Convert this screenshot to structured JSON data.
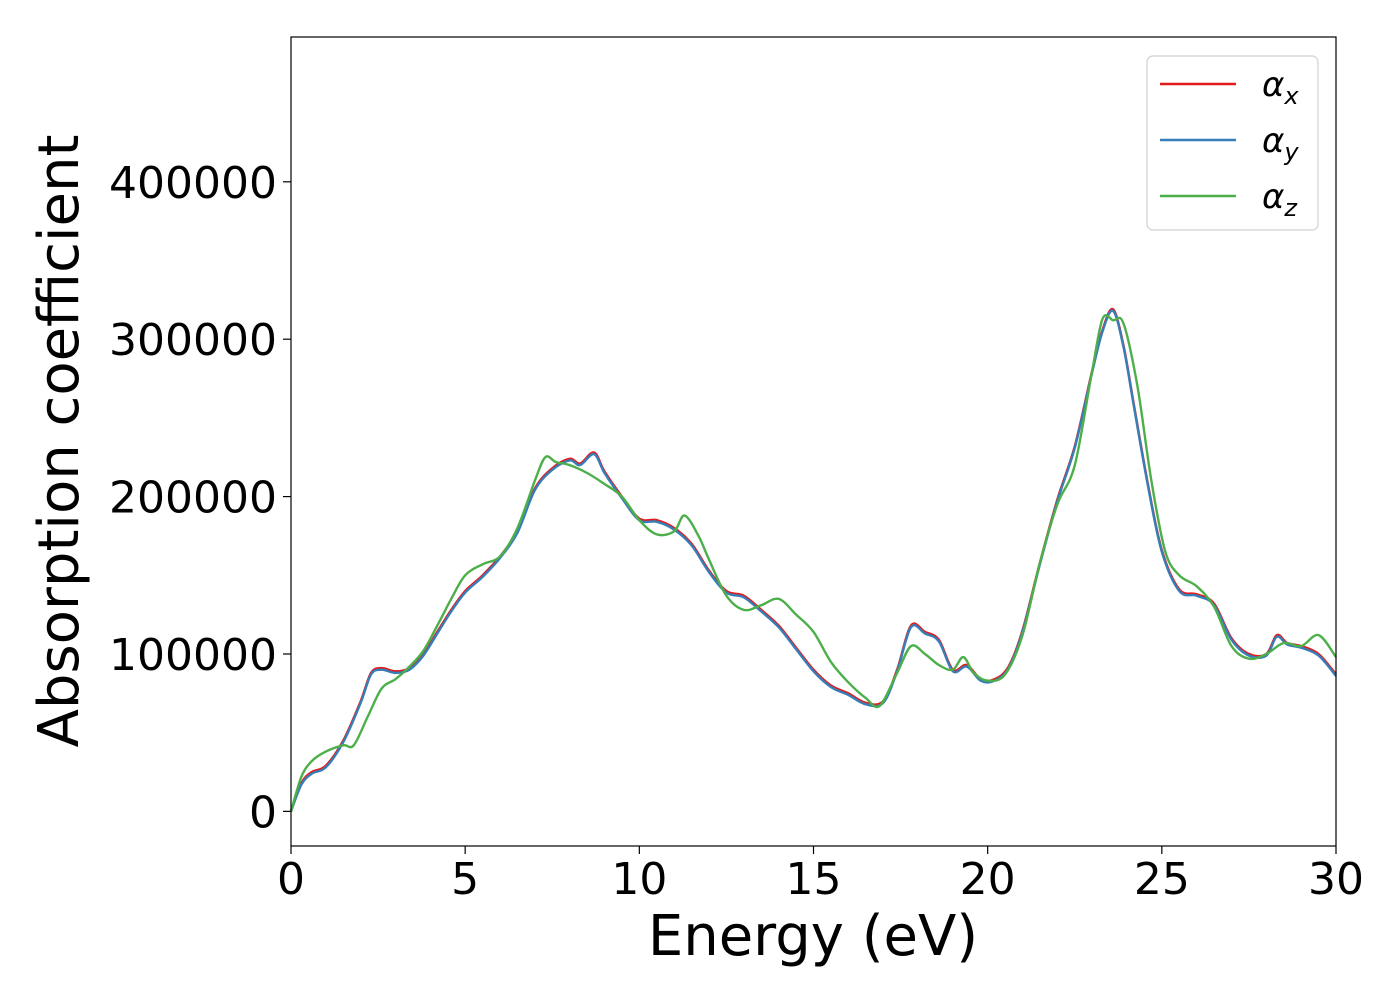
{
  "chart_data": {
    "type": "line",
    "xlabel": "Energy (eV)",
    "ylabel": "Absorption coefficient",
    "xlim": [
      0,
      30
    ],
    "ylim": [
      -22000,
      492000
    ],
    "xticks": [
      0,
      5,
      10,
      15,
      20,
      25,
      30
    ],
    "yticks": [
      0,
      100000,
      200000,
      300000,
      400000
    ],
    "grid": false,
    "legend_position": "top-right",
    "series": [
      {
        "name": "α_x",
        "base": "α",
        "sub": "x",
        "color": "#e41a1c",
        "x": [
          0,
          0.3,
          0.6,
          1.0,
          1.5,
          2.0,
          2.3,
          2.6,
          3.0,
          3.4,
          3.8,
          4.2,
          4.6,
          5.0,
          5.5,
          6.0,
          6.5,
          7.0,
          7.5,
          8.0,
          8.3,
          8.7,
          9.0,
          9.5,
          10.0,
          10.5,
          11.0,
          11.5,
          12.0,
          12.5,
          13.0,
          13.5,
          14.0,
          14.5,
          15.0,
          15.5,
          16.0,
          16.5,
          17.0,
          17.4,
          17.8,
          18.2,
          18.6,
          19.0,
          19.4,
          19.8,
          20.2,
          20.6,
          21.0,
          21.5,
          22.0,
          22.5,
          23.0,
          23.3,
          23.6,
          23.9,
          24.2,
          24.6,
          25.0,
          25.5,
          26.0,
          26.5,
          27.0,
          27.5,
          28.0,
          28.3,
          28.6,
          29.0,
          29.5,
          30.0
        ],
        "y": [
          0,
          18000,
          25000,
          29000,
          45000,
          70000,
          88000,
          91000,
          89000,
          91000,
          100000,
          114000,
          128000,
          140000,
          150000,
          162000,
          178000,
          205000,
          218000,
          224000,
          221000,
          228000,
          216000,
          200000,
          186000,
          185000,
          180000,
          170000,
          153000,
          140000,
          137000,
          128000,
          118000,
          104000,
          90000,
          80000,
          75000,
          69000,
          70000,
          90000,
          118000,
          114000,
          109000,
          90000,
          93000,
          84000,
          84000,
          92000,
          115000,
          158000,
          198000,
          232000,
          280000,
          306000,
          319000,
          296000,
          258000,
          208000,
          166000,
          141000,
          138000,
          132000,
          110000,
          100000,
          100000,
          112000,
          107000,
          105000,
          100000,
          87000
        ]
      },
      {
        "name": "α_y",
        "base": "α",
        "sub": "y",
        "color": "#377eb8",
        "x": [
          0,
          0.3,
          0.6,
          1.0,
          1.5,
          2.0,
          2.3,
          2.6,
          3.0,
          3.4,
          3.8,
          4.2,
          4.6,
          5.0,
          5.5,
          6.0,
          6.5,
          7.0,
          7.5,
          8.0,
          8.3,
          8.7,
          9.0,
          9.5,
          10.0,
          10.5,
          11.0,
          11.5,
          12.0,
          12.5,
          13.0,
          13.5,
          14.0,
          14.5,
          15.0,
          15.5,
          16.0,
          16.5,
          17.0,
          17.4,
          17.8,
          18.2,
          18.6,
          19.0,
          19.4,
          19.8,
          20.2,
          20.6,
          21.0,
          21.5,
          22.0,
          22.5,
          23.0,
          23.3,
          23.6,
          23.9,
          24.2,
          24.6,
          25.0,
          25.5,
          26.0,
          26.5,
          27.0,
          27.5,
          28.0,
          28.3,
          28.6,
          29.0,
          29.5,
          30.0
        ],
        "y": [
          0,
          17000,
          24000,
          28000,
          44000,
          69000,
          87000,
          90000,
          88000,
          90000,
          99000,
          113000,
          127000,
          139000,
          149000,
          161000,
          177000,
          204000,
          217000,
          223000,
          220000,
          227000,
          215000,
          199000,
          185000,
          184000,
          179000,
          169000,
          152000,
          139000,
          136000,
          127000,
          117000,
          103000,
          89000,
          79000,
          74000,
          68000,
          69000,
          89000,
          117000,
          113000,
          108000,
          89000,
          92000,
          83000,
          83000,
          91000,
          114000,
          157000,
          197000,
          231000,
          279000,
          305000,
          318000,
          295000,
          257000,
          207000,
          165000,
          140000,
          137000,
          131000,
          109000,
          99000,
          99000,
          111000,
          106000,
          104000,
          99000,
          86000
        ]
      },
      {
        "name": "α_z",
        "base": "α",
        "sub": "z",
        "color": "#4daf4a",
        "x": [
          0,
          0.3,
          0.6,
          1.0,
          1.5,
          1.8,
          2.2,
          2.6,
          3.0,
          3.4,
          3.8,
          4.2,
          4.6,
          5.0,
          5.5,
          6.0,
          6.5,
          7.0,
          7.3,
          7.6,
          8.0,
          8.5,
          9.0,
          9.5,
          10.0,
          10.5,
          11.0,
          11.3,
          11.7,
          12.0,
          12.5,
          13.0,
          13.5,
          14.0,
          14.5,
          15.0,
          15.5,
          16.0,
          16.5,
          16.9,
          17.4,
          17.8,
          18.2,
          18.6,
          19.0,
          19.3,
          19.6,
          20.0,
          20.5,
          21.0,
          21.5,
          22.0,
          22.5,
          23.0,
          23.3,
          23.6,
          23.9,
          24.3,
          24.7,
          25.1,
          25.5,
          26.0,
          26.5,
          27.0,
          27.5,
          28.0,
          28.5,
          29.0,
          29.5,
          30.0
        ],
        "y": [
          0,
          22000,
          32000,
          38000,
          42000,
          42000,
          60000,
          78000,
          84000,
          92000,
          102000,
          118000,
          135000,
          150000,
          157000,
          162000,
          180000,
          210000,
          225000,
          222000,
          220000,
          215000,
          208000,
          200000,
          185000,
          176000,
          178000,
          188000,
          175000,
          160000,
          137000,
          128000,
          131000,
          135000,
          125000,
          114000,
          95000,
          82000,
          72000,
          67000,
          88000,
          105000,
          100000,
          93000,
          90000,
          98000,
          88000,
          83000,
          87000,
          112000,
          158000,
          195000,
          220000,
          280000,
          313000,
          312000,
          310000,
          270000,
          210000,
          165000,
          150000,
          143000,
          130000,
          105000,
          97000,
          100000,
          107000,
          105000,
          112000,
          98000
        ]
      }
    ]
  }
}
